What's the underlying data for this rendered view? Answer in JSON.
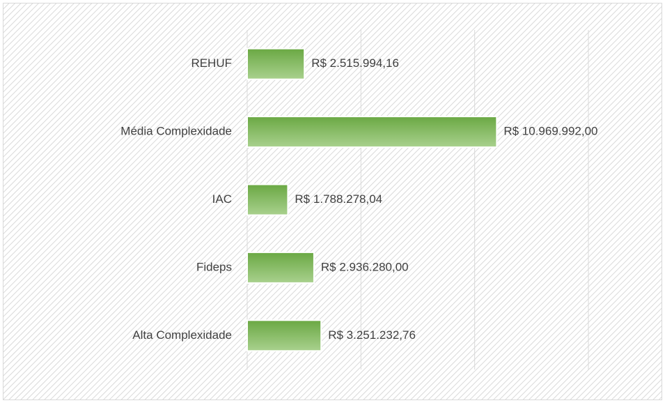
{
  "chart_data": {
    "type": "bar",
    "orientation": "horizontal",
    "categories": [
      "REHUF",
      "Média Complexidade",
      "IAC",
      "Fideps",
      "Alta Complexidade"
    ],
    "values": [
      2515994.16,
      10969992.0,
      1788278.04,
      2936280.0,
      3251232.76
    ],
    "value_labels": [
      "R$ 2.515.994,16",
      "R$ 10.969.992,00",
      "R$ 1.788.278,04",
      "R$ 2.936.280,00",
      "R$ 3.251.232,76"
    ],
    "color": "#70ad47",
    "xlim": [
      0,
      15000000
    ],
    "xticks": [
      0,
      5000000,
      10000000,
      15000000
    ],
    "grid": true
  }
}
